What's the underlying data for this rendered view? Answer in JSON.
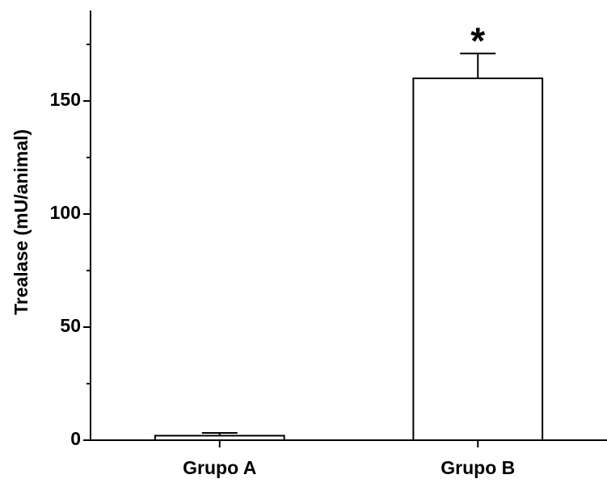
{
  "chart_data": {
    "type": "bar",
    "y_label": "Trealase (mU/animal)",
    "categories": [
      "Grupo A",
      "Grupo B"
    ],
    "values": [
      2,
      160
    ],
    "errors": [
      1.2,
      11
    ],
    "color": "#ffffff",
    "annotation": "*",
    "ylim": [
      0,
      190
    ],
    "yticks": [
      0,
      50,
      100,
      150
    ],
    "minor_yticks": [
      25,
      75,
      125,
      175
    ],
    "grid": false
  }
}
